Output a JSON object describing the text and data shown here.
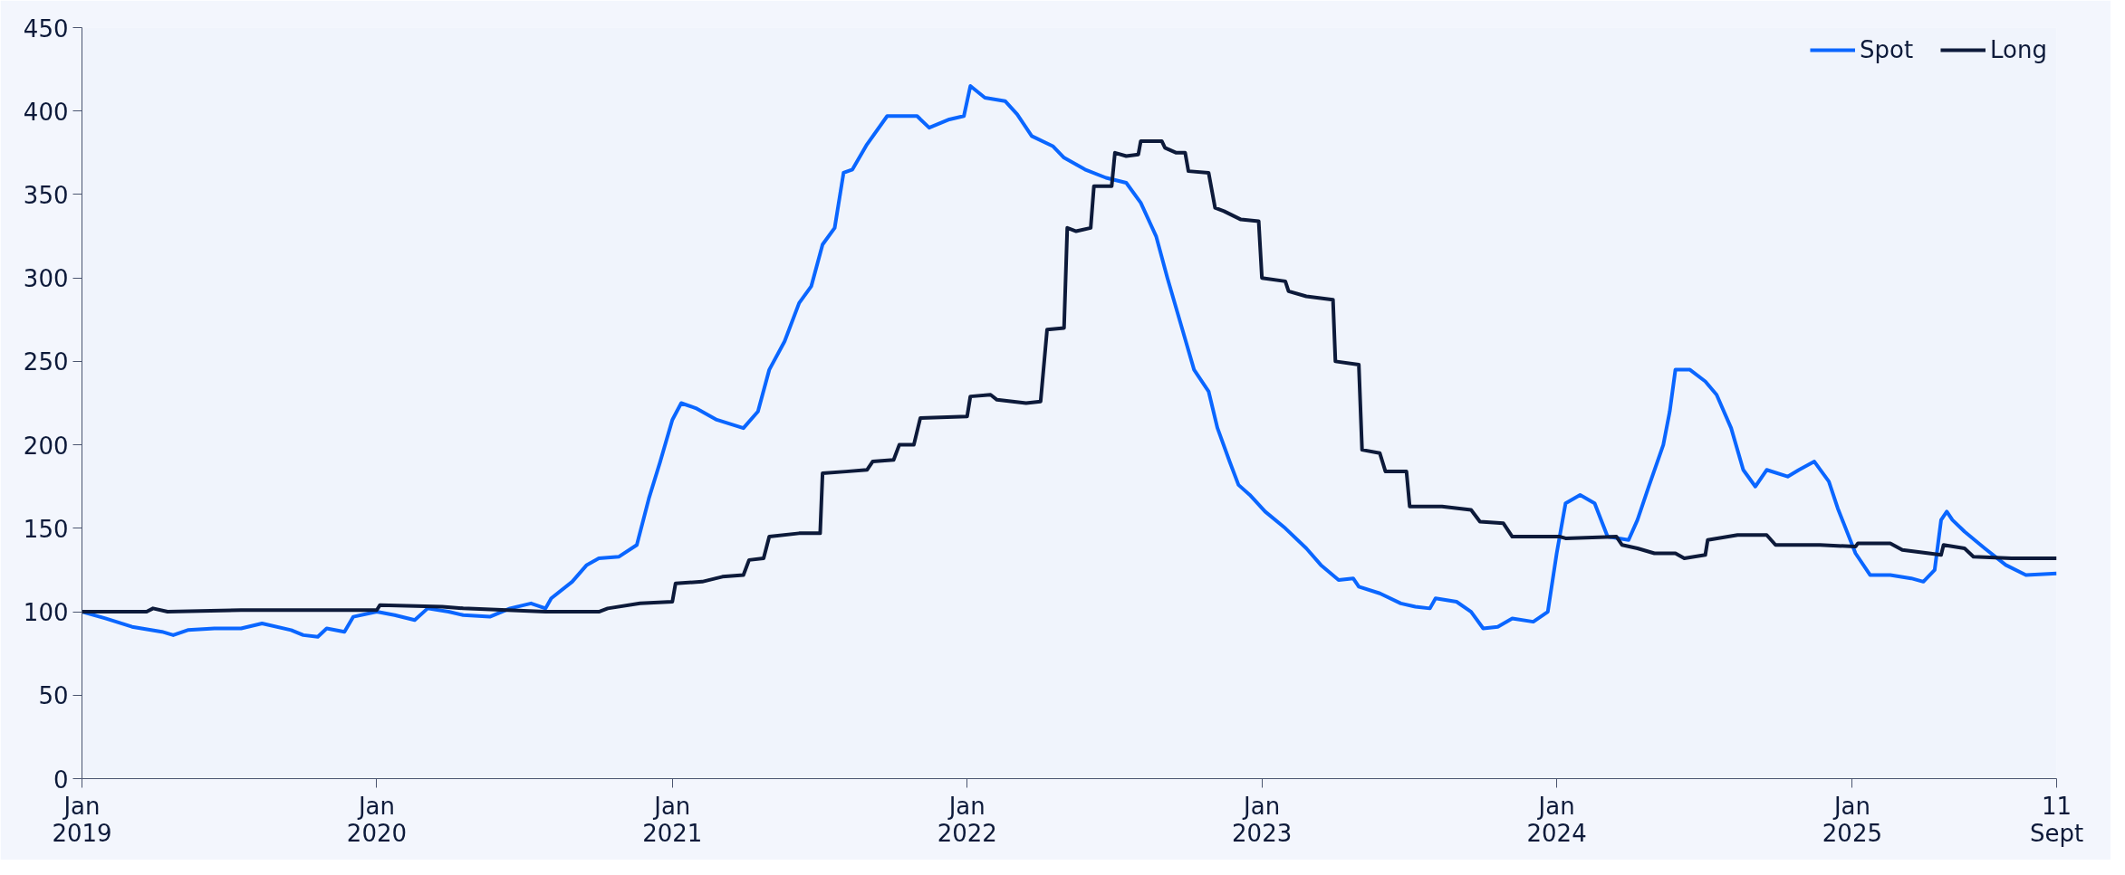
{
  "chart_data": {
    "type": "line",
    "xlim": [
      "2019-01-01",
      "2025-09-11"
    ],
    "ylim": [
      0,
      450
    ],
    "xticks": [
      {
        "value": "2019-01-01",
        "label": "Jan\n2019"
      },
      {
        "value": "2020-01-01",
        "label": "Jan\n2020"
      },
      {
        "value": "2021-01-01",
        "label": "Jan\n2021"
      },
      {
        "value": "2022-01-01",
        "label": "Jan\n2022"
      },
      {
        "value": "2023-01-01",
        "label": "Jan\n2023"
      },
      {
        "value": "2024-01-01",
        "label": "Jan\n2024"
      },
      {
        "value": "2025-01-01",
        "label": "Jan\n2025"
      },
      {
        "value": "2025-09-11",
        "label": "11\nSept"
      }
    ],
    "yticks": [
      0,
      50,
      100,
      150,
      200,
      250,
      300,
      350,
      400,
      450
    ],
    "grid": false,
    "legend": "top right",
    "line_style": "solid",
    "marker": "none",
    "series": [
      {
        "name": "Spot",
        "color": "#0a66ff",
        "x": [
          "2019-01-01",
          "2019-01-30",
          "2019-03-04",
          "2019-04-10",
          "2019-04-24",
          "2019-05-12",
          "2019-06-14",
          "2019-07-17",
          "2019-08-12",
          "2019-09-17",
          "2019-10-02",
          "2019-10-20",
          "2019-10-31",
          "2019-11-22",
          "2019-12-03",
          "2020-01-01",
          "2020-01-23",
          "2020-02-17",
          "2020-03-04",
          "2020-03-30",
          "2020-04-17",
          "2020-05-20",
          "2020-06-14",
          "2020-07-10",
          "2020-07-28",
          "2020-08-04",
          "2020-08-30",
          "2020-09-17",
          "2020-10-02",
          "2020-10-27",
          "2020-11-18",
          "2020-12-03",
          "2020-12-17",
          "2021-01-01",
          "2021-01-12",
          "2021-01-30",
          "2021-02-25",
          "2021-03-30",
          "2021-04-17",
          "2021-05-01",
          "2021-05-20",
          "2021-06-07",
          "2021-06-22",
          "2021-07-06",
          "2021-07-21",
          "2021-08-01",
          "2021-08-12",
          "2021-08-30",
          "2021-09-24",
          "2021-10-31",
          "2021-11-15",
          "2021-12-10",
          "2021-12-28",
          "2022-01-05",
          "2022-01-23",
          "2022-02-17",
          "2022-03-04",
          "2022-03-22",
          "2022-04-17",
          "2022-05-01",
          "2022-05-27",
          "2022-06-22",
          "2022-07-17",
          "2022-08-04",
          "2022-08-23",
          "2022-09-06",
          "2022-09-24",
          "2022-10-09",
          "2022-10-27",
          "2022-11-07",
          "2022-11-22",
          "2022-12-03",
          "2022-12-17",
          "2023-01-05",
          "2023-01-30",
          "2023-02-25",
          "2023-03-15",
          "2023-04-06",
          "2023-04-24",
          "2023-05-01",
          "2023-05-27",
          "2023-06-22",
          "2023-07-10",
          "2023-07-28",
          "2023-08-04",
          "2023-08-30",
          "2023-09-17",
          "2023-10-02",
          "2023-10-20",
          "2023-11-07",
          "2023-12-03",
          "2023-12-21",
          "2024-01-01",
          "2024-01-12",
          "2024-01-30",
          "2024-02-17",
          "2024-03-04",
          "2024-03-30",
          "2024-04-10",
          "2024-04-24",
          "2024-05-12",
          "2024-05-20",
          "2024-05-27",
          "2024-06-14",
          "2024-07-03",
          "2024-07-17",
          "2024-08-04",
          "2024-08-19",
          "2024-09-03",
          "2024-09-17",
          "2024-10-13",
          "2024-10-27",
          "2024-11-15",
          "2024-12-03",
          "2024-12-14",
          "2025-01-05",
          "2025-01-23",
          "2025-02-17",
          "2025-03-15",
          "2025-03-30",
          "2025-04-13",
          "2025-04-21",
          "2025-04-28",
          "2025-05-05",
          "2025-05-20",
          "2025-06-14",
          "2025-07-10",
          "2025-08-04",
          "2025-09-11"
        ],
        "values": [
          100,
          96,
          91,
          88,
          86,
          89,
          90,
          90,
          93,
          89,
          86,
          85,
          90,
          88,
          97,
          100,
          98,
          95,
          102,
          100,
          98,
          97,
          102,
          105,
          102,
          108,
          118,
          128,
          132,
          133,
          140,
          168,
          190,
          215,
          225,
          222,
          215,
          210,
          220,
          245,
          262,
          285,
          295,
          320,
          330,
          363,
          365,
          380,
          397,
          397,
          390,
          395,
          397,
          415,
          408,
          406,
          398,
          385,
          379,
          372,
          365,
          360,
          357,
          345,
          325,
          300,
          270,
          245,
          232,
          210,
          190,
          176,
          170,
          160,
          150,
          138,
          128,
          119,
          120,
          115,
          111,
          105,
          103,
          102,
          108,
          106,
          100,
          90,
          91,
          96,
          94,
          100,
          135,
          165,
          170,
          165,
          145,
          143,
          155,
          175,
          200,
          220,
          245,
          245,
          238,
          230,
          210,
          185,
          175,
          185,
          181,
          185,
          190,
          178,
          162,
          135,
          122,
          122,
          120,
          118,
          125,
          155,
          160,
          155,
          148,
          138,
          128,
          122,
          123
        ]
      },
      {
        "name": "Long",
        "color": "#0d1a3a",
        "x": [
          "2019-01-01",
          "2019-03-22",
          "2019-03-30",
          "2019-04-17",
          "2019-07-17",
          "2020-01-01",
          "2020-01-05",
          "2020-03-22",
          "2020-04-17",
          "2020-07-28",
          "2020-10-02",
          "2020-10-13",
          "2020-11-22",
          "2021-01-01",
          "2021-01-05",
          "2021-02-07",
          "2021-03-04",
          "2021-03-30",
          "2021-04-06",
          "2021-04-24",
          "2021-05-01",
          "2021-06-07",
          "2021-07-03",
          "2021-07-06",
          "2021-08-04",
          "2021-08-30",
          "2021-09-06",
          "2021-10-02",
          "2021-10-09",
          "2021-10-27",
          "2021-11-04",
          "2022-01-01",
          "2022-01-05",
          "2022-01-30",
          "2022-02-07",
          "2022-03-15",
          "2022-04-02",
          "2022-04-10",
          "2022-05-01",
          "2022-05-05",
          "2022-05-16",
          "2022-06-03",
          "2022-06-07",
          "2022-06-29",
          "2022-07-03",
          "2022-07-17",
          "2022-08-01",
          "2022-08-04",
          "2022-08-30",
          "2022-09-03",
          "2022-09-17",
          "2022-09-28",
          "2022-10-02",
          "2022-10-27",
          "2022-11-04",
          "2022-11-15",
          "2022-12-06",
          "2022-12-28",
          "2023-01-01",
          "2023-01-30",
          "2023-02-03",
          "2023-02-25",
          "2023-03-30",
          "2023-04-02",
          "2023-05-01",
          "2023-05-05",
          "2023-05-27",
          "2023-06-03",
          "2023-06-29",
          "2023-07-03",
          "2023-08-12",
          "2023-09-17",
          "2023-09-28",
          "2023-10-27",
          "2023-11-07",
          "2024-01-05",
          "2024-01-12",
          "2024-03-15",
          "2024-03-22",
          "2024-04-10",
          "2024-05-01",
          "2024-05-27",
          "2024-06-07",
          "2024-07-03",
          "2024-07-06",
          "2024-08-12",
          "2024-09-17",
          "2024-09-28",
          "2024-11-22",
          "2025-01-05",
          "2025-01-08",
          "2025-02-17",
          "2025-03-04",
          "2025-04-06",
          "2025-04-21",
          "2025-04-24",
          "2025-05-20",
          "2025-05-31",
          "2025-07-17",
          "2025-09-11"
        ],
        "values": [
          100,
          100,
          102,
          100,
          101,
          101,
          104,
          103,
          102,
          100,
          100,
          102,
          105,
          106,
          117,
          118,
          121,
          122,
          131,
          132,
          145,
          147,
          147,
          183,
          184,
          185,
          190,
          191,
          200,
          200,
          216,
          217,
          229,
          230,
          227,
          225,
          226,
          269,
          270,
          330,
          328,
          330,
          355,
          355,
          375,
          373,
          374,
          382,
          382,
          378,
          375,
          375,
          364,
          363,
          342,
          340,
          335,
          334,
          300,
          298,
          292,
          289,
          287,
          250,
          248,
          197,
          195,
          184,
          184,
          163,
          163,
          161,
          154,
          153,
          145,
          145,
          144,
          145,
          140,
          138,
          135,
          135,
          132,
          134,
          143,
          146,
          146,
          140,
          140,
          139,
          141,
          141,
          137,
          135,
          134,
          140,
          138,
          133,
          132,
          132
        ]
      }
    ]
  }
}
